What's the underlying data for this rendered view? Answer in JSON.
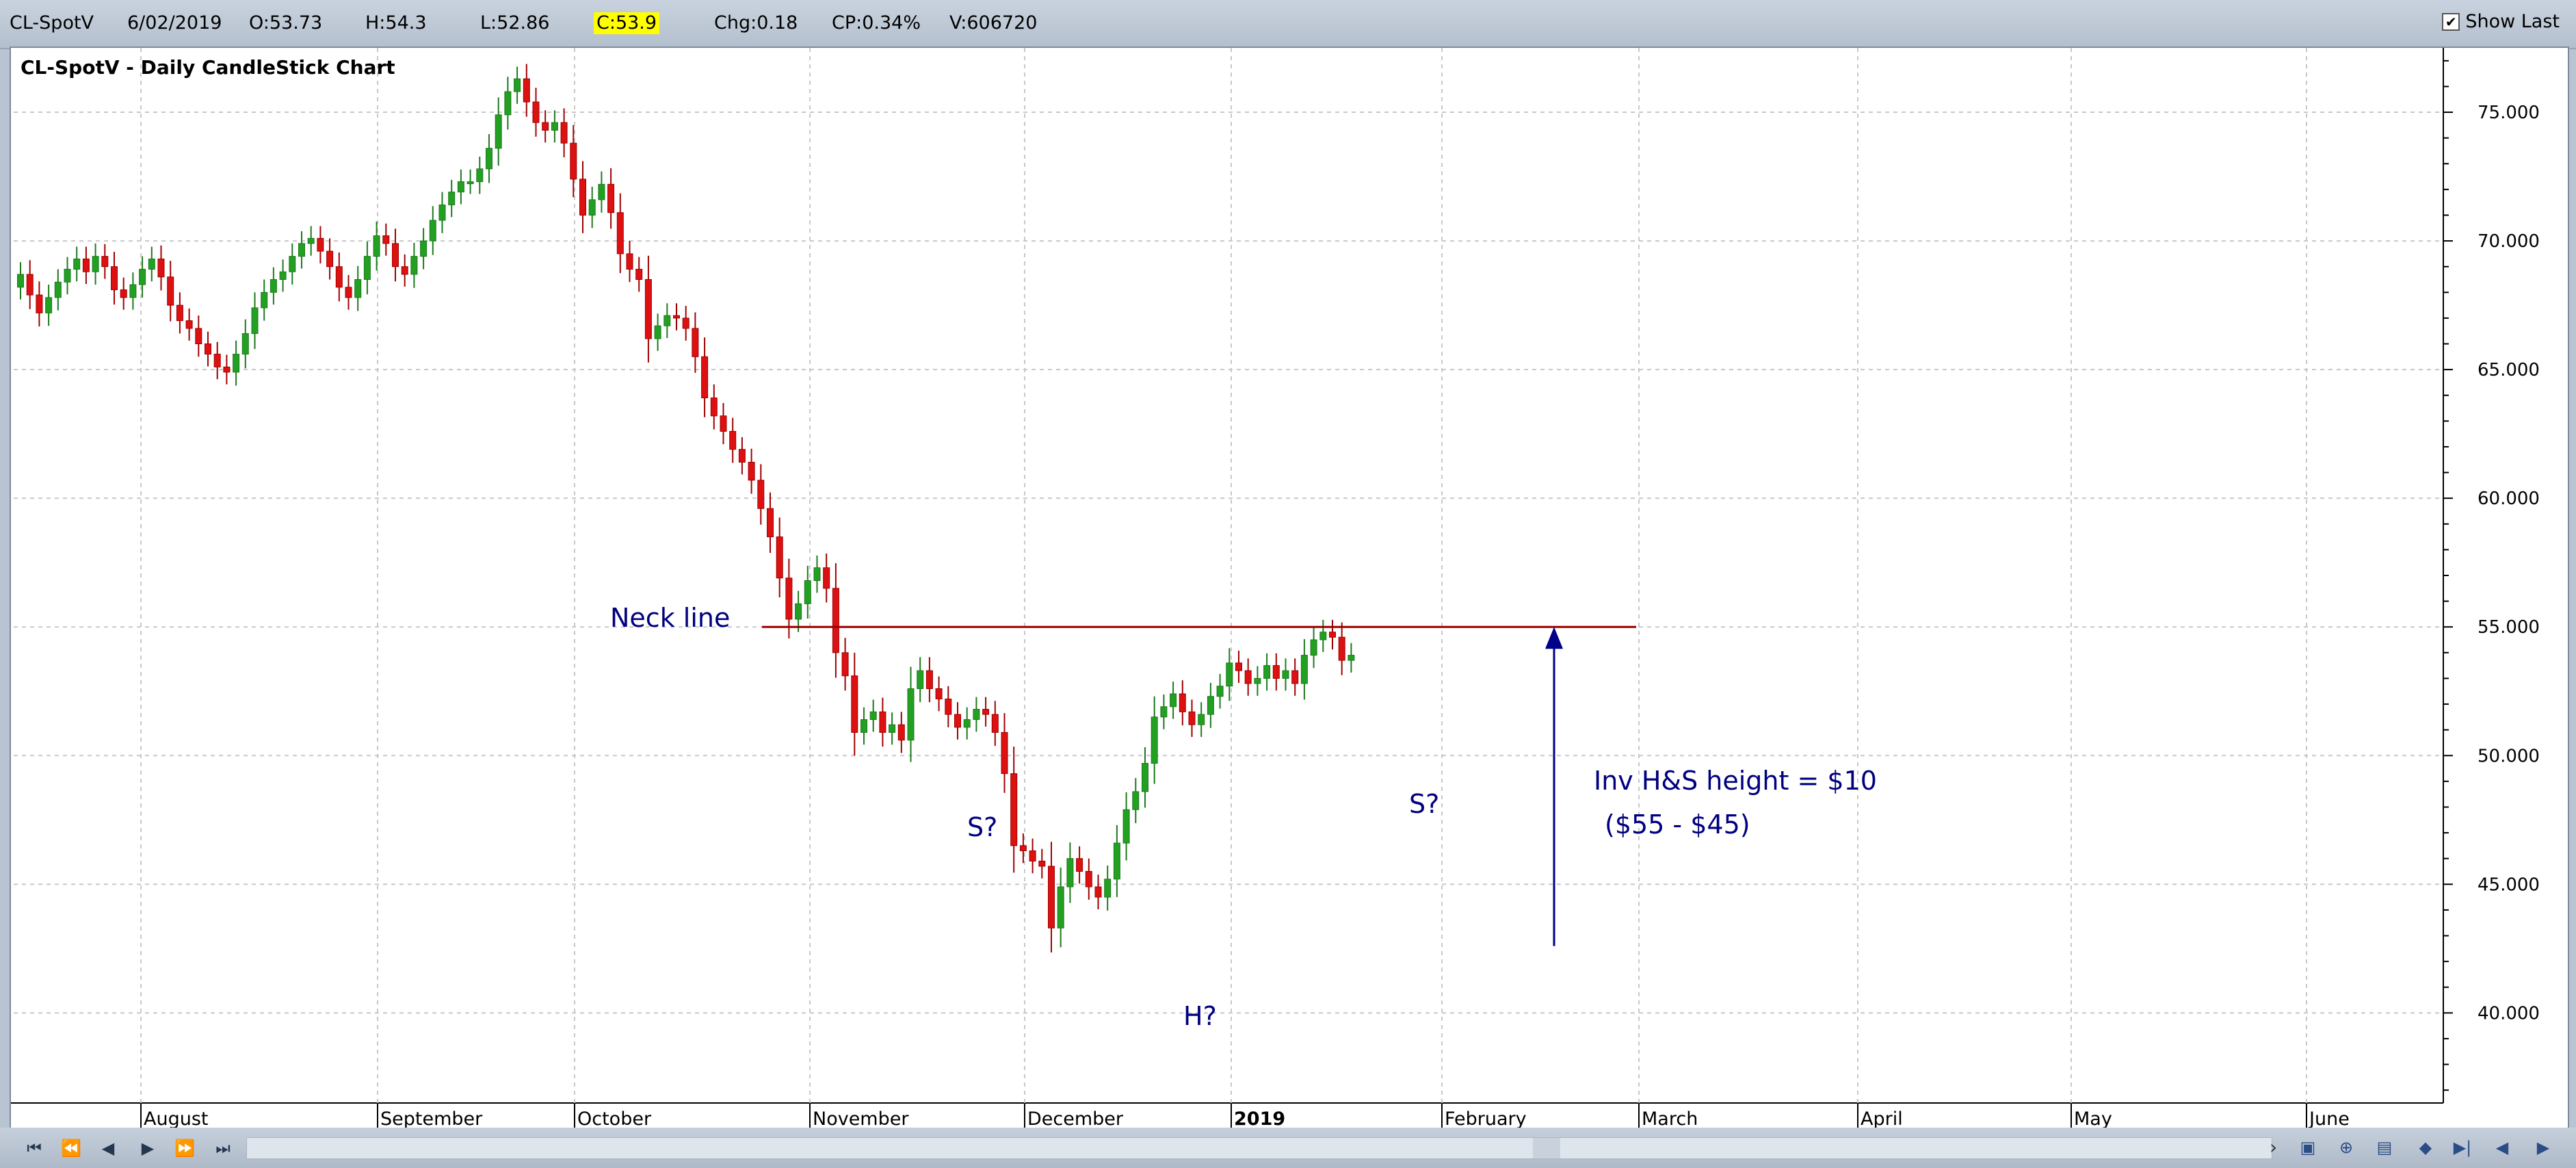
{
  "header": {
    "symbol": "CL-SpotV",
    "date": "6/02/2019",
    "open": "O:53.73",
    "high": "H:54.3",
    "low": "L:52.86",
    "close": "C:53.9",
    "change": "Chg:0.18",
    "change_pct": "CP:0.34%",
    "volume": "V:606720",
    "show_last_label": "Show Last",
    "show_last_checked": true
  },
  "chart_title": "CL-SpotV - Daily CandleStick Chart",
  "chart_data": {
    "type": "candlestick",
    "title": "CL-SpotV - Daily CandleStick Chart",
    "ylim": [
      36.5,
      77.5
    ],
    "y_ticks": [
      40,
      45,
      50,
      55,
      60,
      65,
      70,
      75
    ],
    "y_tick_labels": [
      "40.000",
      "45.000",
      "50.000",
      "55.000",
      "60.000",
      "65.000",
      "70.000",
      "75.000"
    ],
    "y_axis_side": "right",
    "grid": true,
    "x_labels": [
      {
        "label": "August",
        "bold": false
      },
      {
        "label": "September",
        "bold": false
      },
      {
        "label": "October",
        "bold": false
      },
      {
        "label": "November",
        "bold": false
      },
      {
        "label": "December",
        "bold": false
      },
      {
        "label": "2019",
        "bold": true
      },
      {
        "label": "February",
        "bold": false
      },
      {
        "label": "March",
        "bold": false
      },
      {
        "label": "April",
        "bold": false
      },
      {
        "label": "May",
        "bold": false
      },
      {
        "label": "June",
        "bold": false
      }
    ],
    "closes": [
      68.7,
      67.9,
      67.2,
      67.8,
      68.4,
      68.9,
      69.3,
      68.8,
      69.4,
      69.0,
      68.1,
      67.8,
      68.3,
      68.9,
      69.3,
      68.6,
      67.5,
      66.9,
      66.6,
      66.0,
      65.6,
      65.1,
      64.9,
      65.6,
      66.4,
      67.4,
      68.0,
      68.5,
      68.8,
      69.4,
      69.9,
      70.1,
      69.6,
      69.0,
      68.2,
      67.8,
      68.5,
      69.4,
      70.2,
      69.9,
      69.0,
      68.7,
      69.4,
      70.0,
      70.8,
      71.4,
      71.9,
      72.3,
      72.3,
      72.8,
      73.6,
      74.9,
      75.8,
      76.3,
      75.4,
      74.6,
      74.3,
      74.6,
      73.8,
      72.4,
      71.0,
      71.6,
      72.2,
      71.1,
      69.5,
      68.9,
      68.5,
      66.2,
      66.7,
      67.1,
      67.0,
      66.6,
      65.5,
      63.9,
      63.2,
      62.6,
      61.9,
      61.4,
      60.7,
      59.6,
      58.5,
      56.9,
      55.3,
      55.9,
      56.8,
      57.3,
      56.5,
      54.0,
      53.1,
      50.9,
      51.4,
      51.7,
      50.9,
      51.2,
      50.6,
      52.6,
      53.3,
      52.6,
      52.2,
      51.6,
      51.1,
      51.4,
      51.8,
      51.6,
      50.9,
      49.3,
      46.5,
      46.3,
      45.9,
      45.7,
      43.3,
      44.9,
      46.0,
      45.5,
      44.9,
      44.5,
      45.2,
      46.6,
      47.9,
      48.6,
      49.7,
      51.5,
      51.9,
      52.4,
      51.7,
      51.2,
      51.6,
      52.3,
      52.7,
      53.6,
      53.3,
      52.8,
      53.0,
      53.5,
      53.0,
      53.3,
      52.8,
      53.9,
      54.5,
      54.8,
      54.6,
      53.7,
      53.9
    ],
    "series_colors": {
      "up": "#22a022",
      "down": "#dd1111"
    },
    "neckline": {
      "value": 55.0,
      "label": "Neck line",
      "color": "#990000"
    },
    "annotations": [
      {
        "text": "S?"
      },
      {
        "text": "H?"
      },
      {
        "text": "S?"
      },
      {
        "text": "Inv H&S height = $10"
      },
      {
        "text": "($55 - $45)"
      }
    ],
    "height_arrow": {
      "from": 42.6,
      "to": 55.0,
      "color": "#000088"
    }
  },
  "footer": {
    "nav_icons": [
      "first-icon",
      "page-back-icon",
      "step-back-icon",
      "step-forward-icon",
      "page-forward-icon",
      "last-icon"
    ],
    "tool_icons": [
      "chart-tool-icon",
      "zoom-tool-icon",
      "save-tool-icon",
      "scroll-left-icon",
      "scroll-end-icon",
      "prev-icon",
      "next-icon"
    ]
  }
}
